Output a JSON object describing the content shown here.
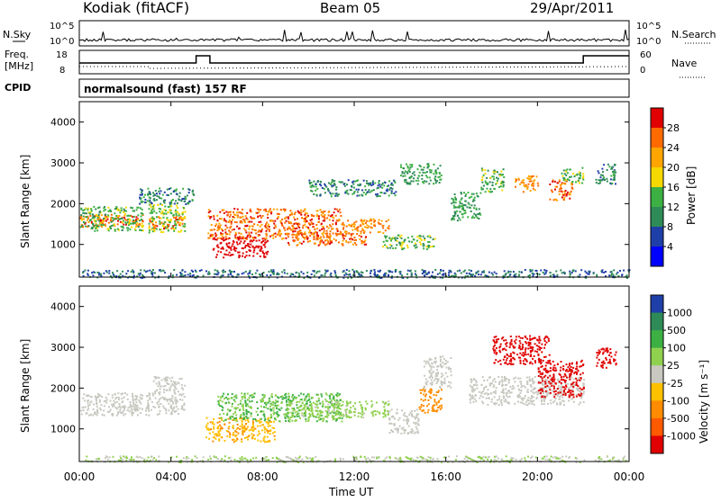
{
  "header": {
    "station": "Kodiak (fitACF)",
    "beam": "Beam 05",
    "date": "29/Apr/2011"
  },
  "top_panels": {
    "nsky_label": "N.Sky",
    "nsearch_label": "N.Search",
    "nsky_ticks": [
      "10^5",
      "10^0"
    ],
    "nsearch_ticks": [
      "10^5",
      "10^0"
    ],
    "freq_label": "Freq.",
    "freq_unit": "[MHz]",
    "freq_ticks": [
      "18",
      "8"
    ],
    "nave_label": "Nave",
    "nave_ticks": [
      "60",
      "0"
    ],
    "cpid_label": "CPID",
    "cpid_text": "normalsound (fast) 157 RF"
  },
  "chart_data": [
    {
      "type": "heatmap",
      "name": "power",
      "xlabel": "Time UT",
      "ylabel": "Slant Range [km]",
      "x_range_hours": [
        0,
        24
      ],
      "ylim": [
        200,
        4500
      ],
      "y_ticks": [
        "4000",
        "3000",
        "2000",
        "1000"
      ],
      "colorbar_label": "Power [dB]",
      "colorbar_ticks": [
        "28",
        "24",
        "20",
        "16",
        "12",
        "8",
        "4"
      ],
      "colorbar_colors": [
        "#e00000",
        "#ff6a00",
        "#ffa500",
        "#f5d800",
        "#3cb043",
        "#2e8b57",
        "#1f3fa8",
        "#0000ff"
      ],
      "regions": [
        {
          "t0": 0.0,
          "t1": 2.8,
          "r0": 1450,
          "r1": 1750,
          "level": 24
        },
        {
          "t0": 0.0,
          "t1": 2.8,
          "r0": 1350,
          "r1": 1950,
          "level": 12
        },
        {
          "t0": 3.0,
          "t1": 4.6,
          "r0": 1400,
          "r1": 1700,
          "level": 24
        },
        {
          "t0": 3.0,
          "t1": 4.6,
          "r0": 1300,
          "r1": 2000,
          "level": 14
        },
        {
          "t0": 2.6,
          "t1": 5.0,
          "r0": 2000,
          "r1": 2400,
          "level": 8
        },
        {
          "t0": 5.8,
          "t1": 8.2,
          "r0": 700,
          "r1": 1200,
          "level": 30
        },
        {
          "t0": 5.6,
          "t1": 11.5,
          "r0": 1150,
          "r1": 1900,
          "level": 24
        },
        {
          "t0": 9.0,
          "t1": 12.5,
          "r0": 1000,
          "r1": 1300,
          "level": 24
        },
        {
          "t0": 11.5,
          "t1": 13.5,
          "r0": 1300,
          "r1": 1650,
          "level": 22
        },
        {
          "t0": 13.2,
          "t1": 15.5,
          "r0": 900,
          "r1": 1250,
          "level": 12
        },
        {
          "t0": 10.0,
          "t1": 13.8,
          "r0": 2200,
          "r1": 2600,
          "level": 8
        },
        {
          "t0": 14.0,
          "t1": 15.8,
          "r0": 2500,
          "r1": 3000,
          "level": 10
        },
        {
          "t0": 16.2,
          "t1": 17.5,
          "r0": 1600,
          "r1": 2300,
          "level": 10
        },
        {
          "t0": 17.5,
          "t1": 18.5,
          "r0": 2300,
          "r1": 2900,
          "level": 12
        },
        {
          "t0": 19.0,
          "t1": 20.0,
          "r0": 2300,
          "r1": 2700,
          "level": 22
        },
        {
          "t0": 20.5,
          "t1": 21.5,
          "r0": 2100,
          "r1": 2600,
          "level": 24
        },
        {
          "t0": 21.0,
          "t1": 22.0,
          "r0": 2500,
          "r1": 2900,
          "level": 12
        },
        {
          "t0": 22.5,
          "t1": 23.4,
          "r0": 2500,
          "r1": 3000,
          "level": 8
        },
        {
          "t0": 0.0,
          "t1": 24.0,
          "r0": 200,
          "r1": 400,
          "level": 6
        }
      ]
    },
    {
      "type": "heatmap",
      "name": "velocity",
      "xlabel": "Time UT",
      "ylabel": "Slant Range [km]",
      "x_range_hours": [
        0,
        24
      ],
      "ylim": [
        200,
        4500
      ],
      "y_ticks": [
        "4000",
        "3000",
        "2000",
        "1000"
      ],
      "x_ticks": [
        "00:00",
        "04:00",
        "08:00",
        "12:00",
        "16:00",
        "20:00",
        "00:00"
      ],
      "colorbar_label": "Velocity [m s⁻¹]",
      "colorbar_ticks": [
        "1000",
        "500",
        "100",
        "25",
        "-25",
        "-100",
        "-500",
        "-1000"
      ],
      "colorbar_colors": [
        "#1f3fa8",
        "#2e8b57",
        "#3cb043",
        "#8fd14f",
        "#c8c8c0",
        "#ffc000",
        "#ff8c00",
        "#ff5a00",
        "#e00000"
      ],
      "regions": [
        {
          "t0": 0.0,
          "t1": 4.6,
          "r0": 1350,
          "r1": 1900,
          "level": 0
        },
        {
          "t0": 3.2,
          "t1": 4.6,
          "r0": 1900,
          "r1": 2300,
          "level": 0
        },
        {
          "t0": 5.5,
          "t1": 8.5,
          "r0": 700,
          "r1": 1300,
          "level": -50
        },
        {
          "t0": 6.0,
          "t1": 11.5,
          "r0": 1200,
          "r1": 1900,
          "level": 60
        },
        {
          "t0": 9.0,
          "t1": 13.5,
          "r0": 1300,
          "r1": 1700,
          "level": 40
        },
        {
          "t0": 13.5,
          "t1": 14.8,
          "r0": 900,
          "r1": 1500,
          "level": 0
        },
        {
          "t0": 14.8,
          "t1": 15.8,
          "r0": 1400,
          "r1": 2000,
          "level": -150
        },
        {
          "t0": 15.0,
          "t1": 16.2,
          "r0": 2000,
          "r1": 2800,
          "level": 0
        },
        {
          "t0": 17.0,
          "t1": 22.0,
          "r0": 1600,
          "r1": 2300,
          "level": 0
        },
        {
          "t0": 18.0,
          "t1": 20.5,
          "r0": 2600,
          "r1": 3300,
          "level": -800
        },
        {
          "t0": 20.0,
          "t1": 22.0,
          "r0": 1800,
          "r1": 2700,
          "level": -800
        },
        {
          "t0": 22.5,
          "t1": 23.4,
          "r0": 2500,
          "r1": 3000,
          "level": -800
        },
        {
          "t0": 0.0,
          "t1": 24.0,
          "r0": 200,
          "r1": 350,
          "level": 25
        }
      ]
    }
  ],
  "colors": {
    "frame": "#000000",
    "background": "#ffffff"
  }
}
